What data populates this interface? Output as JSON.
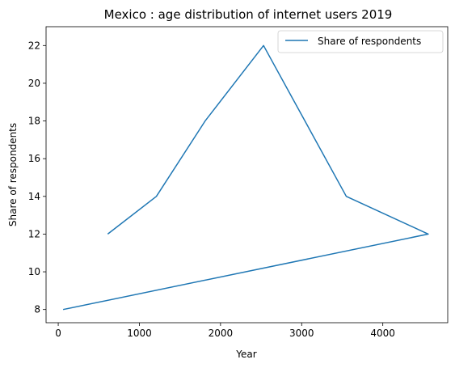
{
  "chart_data": {
    "type": "line",
    "title": "Mexico : age distribution of internet users 2019",
    "xlabel": "Year",
    "ylabel": "Share of respondents",
    "xlim": [
      -150,
      4800
    ],
    "ylim": [
      7.3,
      23.0
    ],
    "x_ticks": [
      0,
      1000,
      2000,
      3000,
      4000
    ],
    "y_ticks": [
      8,
      10,
      12,
      14,
      16,
      18,
      20,
      22
    ],
    "grid": false,
    "legend_position": "top-right",
    "series": [
      {
        "name": "Share of respondents",
        "color": "#1f77b4",
        "x": [
          610,
          1210,
          1810,
          2530,
          3550,
          4560,
          60
        ],
        "y": [
          12,
          14,
          18,
          22,
          14,
          12,
          8
        ]
      }
    ]
  }
}
